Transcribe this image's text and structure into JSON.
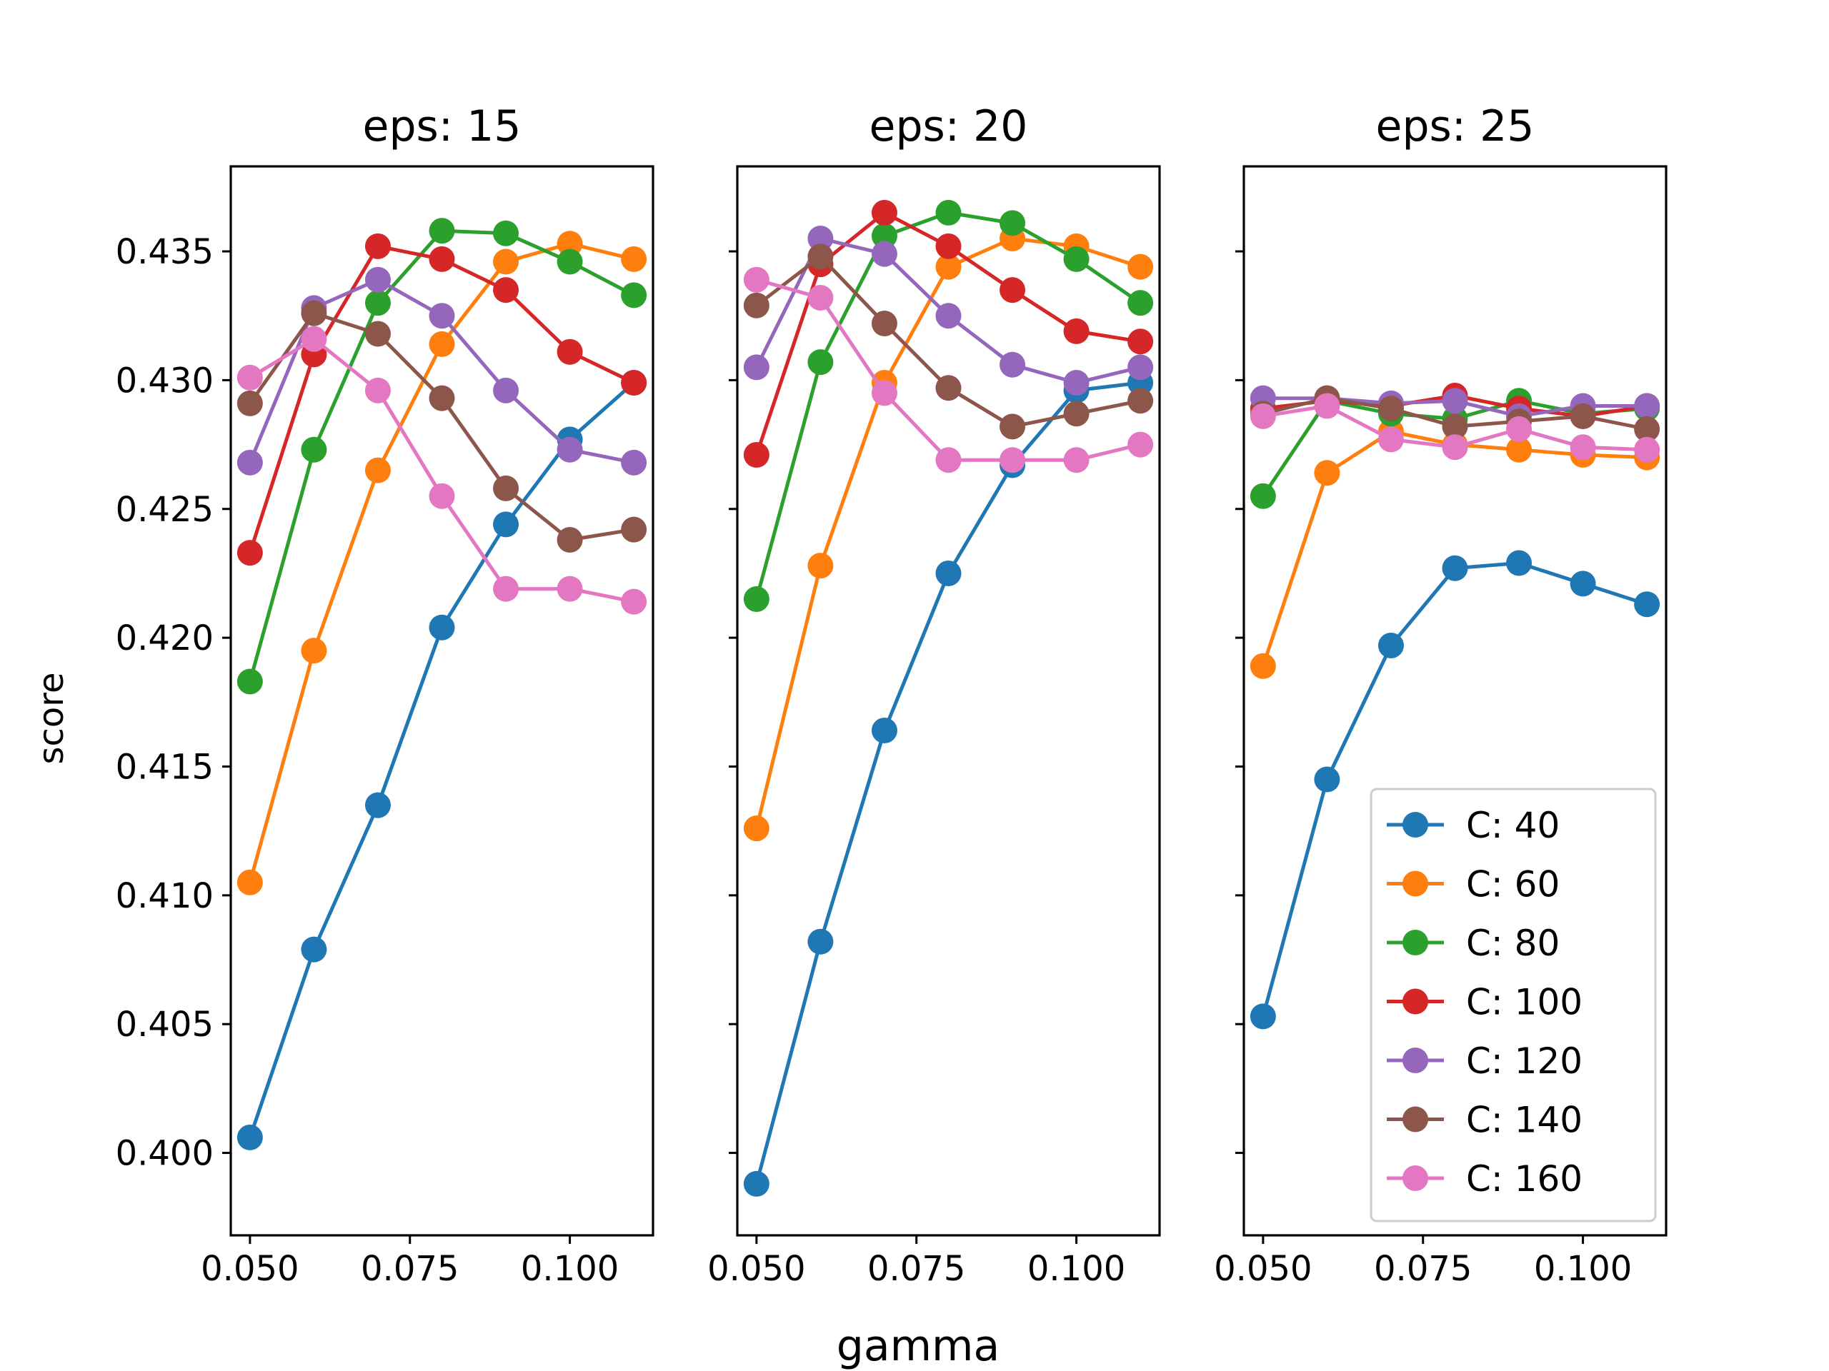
{
  "figure": {
    "xlabel": "gamma",
    "ylabel": "score"
  },
  "chart_data": {
    "type": "line",
    "xlim": [
      0.047,
      0.113
    ],
    "ylim": [
      0.3968,
      0.4383
    ],
    "x_ticks": [
      0.05,
      0.075,
      0.1
    ],
    "x_tick_labels": [
      "0.050",
      "0.075",
      "0.100"
    ],
    "y_ticks": [
      0.4,
      0.405,
      0.41,
      0.415,
      0.42,
      0.425,
      0.43,
      0.435
    ],
    "y_tick_labels": [
      "0.400",
      "0.405",
      "0.410",
      "0.415",
      "0.420",
      "0.425",
      "0.430",
      "0.435"
    ],
    "x": [
      0.05,
      0.06,
      0.07,
      0.08,
      0.09,
      0.1,
      0.11
    ],
    "legend": {
      "placement": "lower-right",
      "panel": 2
    },
    "panels": [
      {
        "title": "eps: 15",
        "series": [
          {
            "name": "C: 40",
            "color": "#1f77b4",
            "values": [
              0.4006,
              0.4079,
              0.4135,
              0.4204,
              0.4244,
              0.4277,
              0.4299
            ]
          },
          {
            "name": "C: 60",
            "color": "#ff7f0e",
            "values": [
              0.4105,
              0.4195,
              0.4265,
              0.4314,
              0.4346,
              0.4353,
              0.4347
            ]
          },
          {
            "name": "C: 80",
            "color": "#2ca02c",
            "values": [
              0.4183,
              0.4273,
              0.433,
              0.4358,
              0.4357,
              0.4346,
              0.4333
            ]
          },
          {
            "name": "C: 100",
            "color": "#d62728",
            "values": [
              0.4233,
              0.431,
              0.4352,
              0.4347,
              0.4335,
              0.4311,
              0.4299
            ]
          },
          {
            "name": "C: 120",
            "color": "#9467bd",
            "values": [
              0.4268,
              0.4328,
              0.4339,
              0.4325,
              0.4296,
              0.4273,
              0.4268
            ]
          },
          {
            "name": "C: 140",
            "color": "#8c564b",
            "values": [
              0.4291,
              0.4326,
              0.4318,
              0.4293,
              0.4258,
              0.4238,
              0.4242
            ]
          },
          {
            "name": "C: 160",
            "color": "#e377c2",
            "values": [
              0.4301,
              0.4316,
              0.4296,
              0.4255,
              0.4219,
              0.4219,
              0.4214
            ]
          }
        ]
      },
      {
        "title": "eps: 20",
        "series": [
          {
            "name": "C: 40",
            "color": "#1f77b4",
            "values": [
              0.3988,
              0.4082,
              0.4164,
              0.4225,
              0.4267,
              0.4296,
              0.4299
            ]
          },
          {
            "name": "C: 60",
            "color": "#ff7f0e",
            "values": [
              0.4126,
              0.4228,
              0.4299,
              0.4344,
              0.4355,
              0.4352,
              0.4344
            ]
          },
          {
            "name": "C: 80",
            "color": "#2ca02c",
            "values": [
              0.4215,
              0.4307,
              0.4356,
              0.4365,
              0.4361,
              0.4347,
              0.433
            ]
          },
          {
            "name": "C: 100",
            "color": "#d62728",
            "values": [
              0.4271,
              0.4345,
              0.4365,
              0.4352,
              0.4335,
              0.4319,
              0.4315
            ]
          },
          {
            "name": "C: 120",
            "color": "#9467bd",
            "values": [
              0.4305,
              0.4355,
              0.4349,
              0.4325,
              0.4306,
              0.4299,
              0.4305
            ]
          },
          {
            "name": "C: 140",
            "color": "#8c564b",
            "values": [
              0.4329,
              0.4348,
              0.4322,
              0.4297,
              0.4282,
              0.4287,
              0.4292
            ]
          },
          {
            "name": "C: 160",
            "color": "#e377c2",
            "values": [
              0.4339,
              0.4332,
              0.4295,
              0.4269,
              0.4269,
              0.4269,
              0.4275
            ]
          }
        ]
      },
      {
        "title": "eps: 25",
        "series": [
          {
            "name": "C: 40",
            "color": "#1f77b4",
            "values": [
              0.4053,
              0.4145,
              0.4197,
              0.4227,
              0.4229,
              0.4221,
              0.4213
            ]
          },
          {
            "name": "C: 60",
            "color": "#ff7f0e",
            "values": [
              0.4189,
              0.4264,
              0.428,
              0.4275,
              0.4273,
              0.4271,
              0.427
            ]
          },
          {
            "name": "C: 80",
            "color": "#2ca02c",
            "values": [
              0.4255,
              0.4292,
              0.4287,
              0.4285,
              0.4292,
              0.4287,
              0.4289
            ]
          },
          {
            "name": "C: 100",
            "color": "#d62728",
            "values": [
              0.4289,
              0.4292,
              0.429,
              0.4294,
              0.4289,
              0.4286,
              0.429
            ]
          },
          {
            "name": "C: 120",
            "color": "#9467bd",
            "values": [
              0.4293,
              0.4293,
              0.4291,
              0.4292,
              0.4286,
              0.429,
              0.429
            ]
          },
          {
            "name": "C: 140",
            "color": "#8c564b",
            "values": [
              0.4287,
              0.4293,
              0.4289,
              0.4282,
              0.4284,
              0.4286,
              0.4281
            ]
          },
          {
            "name": "C: 160",
            "color": "#e377c2",
            "values": [
              0.4286,
              0.429,
              0.4277,
              0.4274,
              0.4281,
              0.4274,
              0.4273
            ]
          }
        ]
      }
    ]
  }
}
